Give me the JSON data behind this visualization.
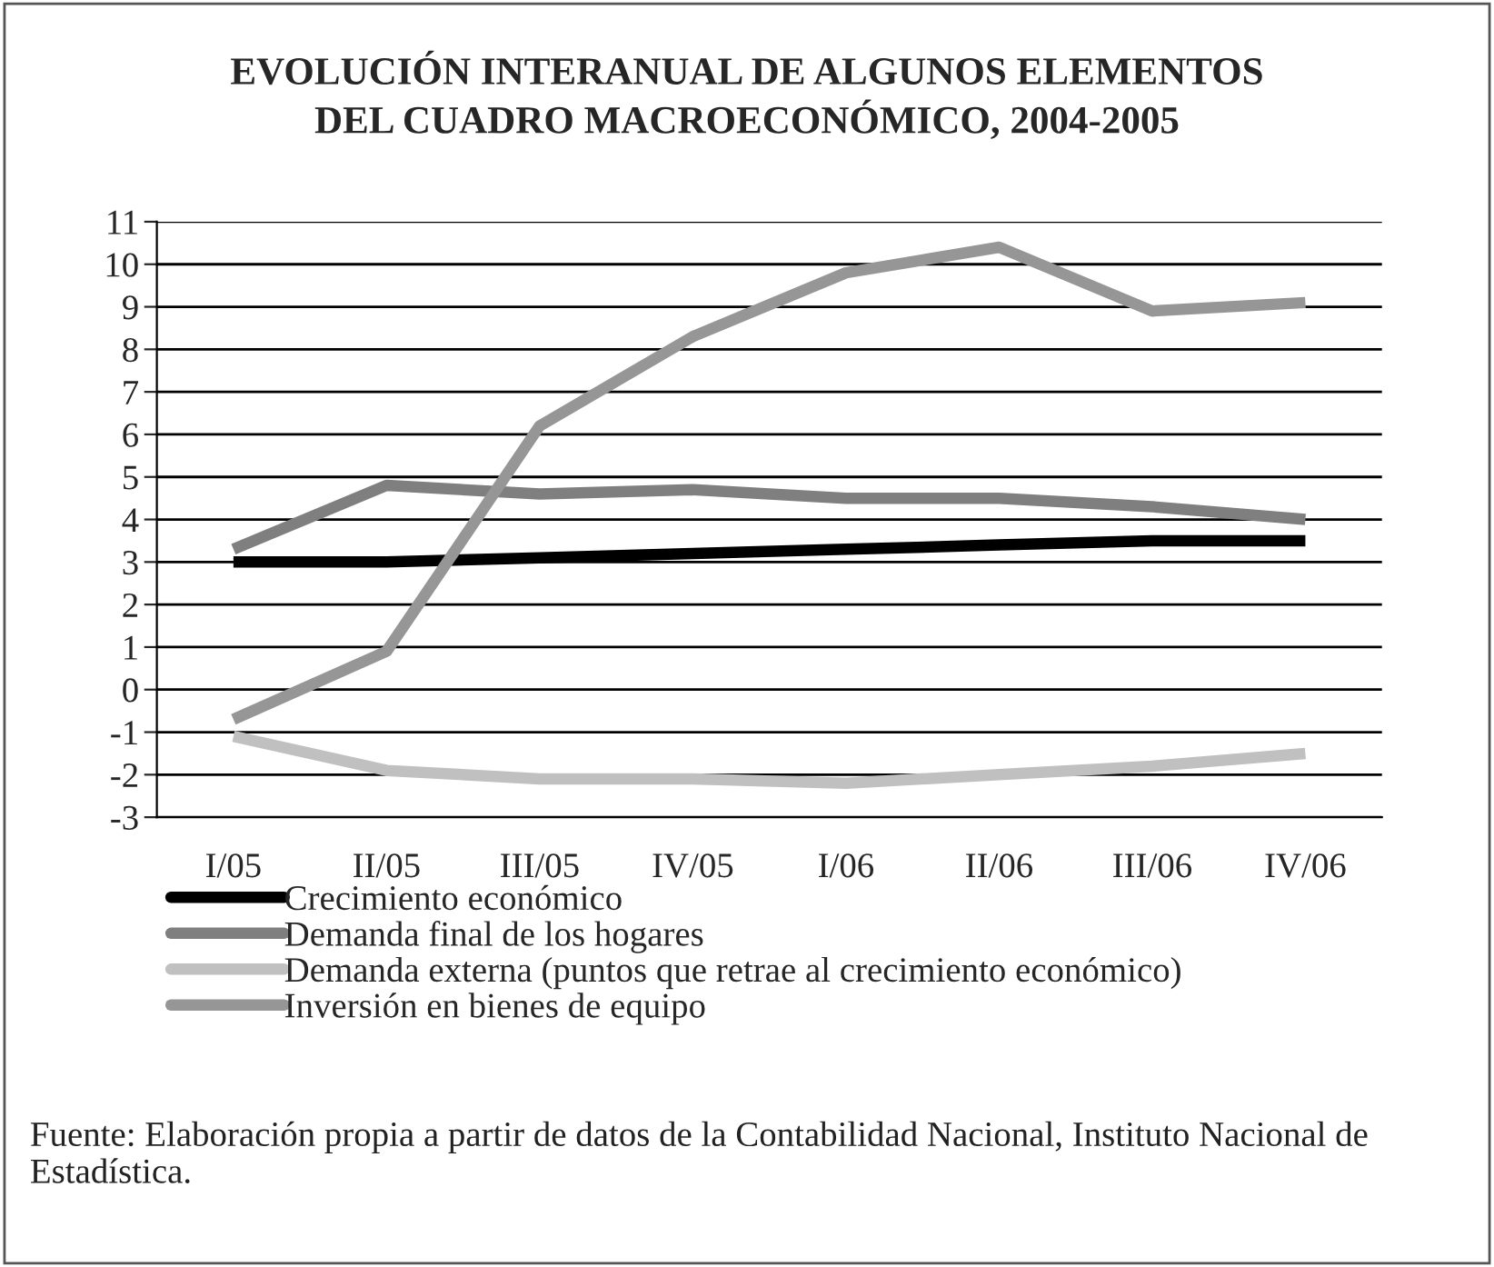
{
  "chart_data": {
    "type": "line",
    "title": "EVOLUCIÓN INTERANUAL DE ALGUNOS ELEMENTOS\nDEL CUADRO MACROECONÓMICO, 2004-2005",
    "categories": [
      "I/05",
      "II/05",
      "III/05",
      "IV/05",
      "I/06",
      "II/06",
      "III/06",
      "IV/06"
    ],
    "series": [
      {
        "name": "Crecimiento económico",
        "color": "#000000",
        "values": [
          3.0,
          3.0,
          3.1,
          3.2,
          3.3,
          3.4,
          3.5,
          3.5
        ]
      },
      {
        "name": "Demanda final de los hogares",
        "color": "#7f7f7f",
        "values": [
          3.3,
          4.8,
          4.6,
          4.7,
          4.5,
          4.5,
          4.3,
          4.0
        ]
      },
      {
        "name": "Demanda externa (puntos que retrae al crecimiento económico)",
        "color": "#c0c0c0",
        "values": [
          -1.1,
          -1.9,
          -2.1,
          -2.1,
          -2.2,
          -2.0,
          -1.8,
          -1.5
        ]
      },
      {
        "name": "Inversión en bienes de equipo",
        "color": "#969696",
        "values": [
          -0.7,
          0.9,
          6.2,
          8.3,
          9.8,
          10.4,
          8.9,
          9.1
        ]
      }
    ],
    "ylim": [
      -3,
      11
    ],
    "yticks": [
      -3,
      -2,
      -1,
      0,
      1,
      2,
      3,
      4,
      5,
      6,
      7,
      8,
      9,
      10,
      11
    ],
    "grid": "y",
    "legend": "bottom",
    "marker": "none",
    "line_style": "solid",
    "annotations": [
      "Fuente: Elaboración propia a partir de datos de la Contabilidad Nacional, Instituto Nacional de Estadística."
    ]
  }
}
